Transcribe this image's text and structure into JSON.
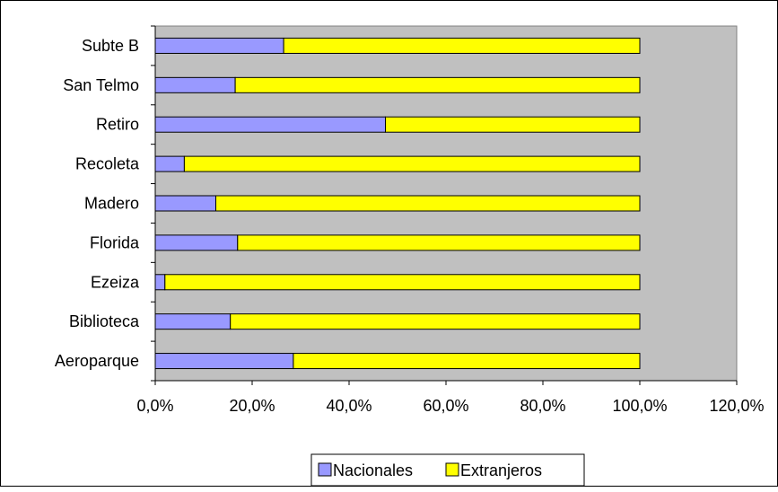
{
  "chart_data": {
    "type": "bar",
    "orientation": "horizontal",
    "stacked": true,
    "categories": [
      "Subte B",
      "San Telmo",
      "Retiro",
      "Recoleta",
      "Madero",
      "Florida",
      "Ezeiza",
      "Biblioteca",
      "Aeroparque"
    ],
    "series": [
      {
        "name": "Nacionales",
        "color": "#9999ff",
        "values": [
          26.5,
          16.5,
          47.5,
          6.0,
          12.5,
          17.0,
          2.0,
          15.5,
          28.5
        ]
      },
      {
        "name": "Extranjeros",
        "color": "#ffff00",
        "values": [
          73.5,
          83.5,
          52.5,
          94.0,
          87.5,
          83.0,
          98.0,
          84.5,
          71.5
        ]
      }
    ],
    "xlim": [
      0,
      120
    ],
    "xticks": [
      "0,0%",
      "20,0%",
      "40,0%",
      "60,0%",
      "80,0%",
      "100,0%",
      "120,0%"
    ],
    "plot_background": "#c0c0c0",
    "grid": false,
    "legend_position": "bottom"
  }
}
